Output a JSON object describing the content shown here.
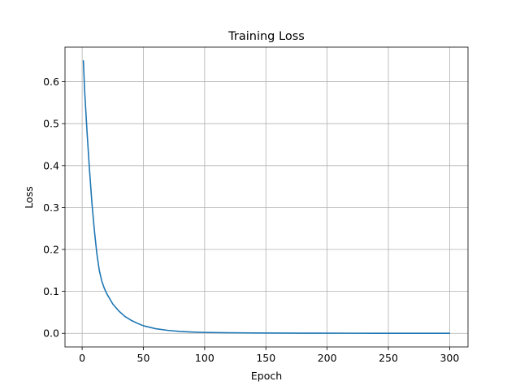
{
  "chart_data": {
    "type": "line",
    "title": "Training Loss",
    "xlabel": "Epoch",
    "ylabel": "Loss",
    "xlim": [
      -14,
      315
    ],
    "ylim": [
      -0.0325,
      0.6825
    ],
    "xticks": [
      0,
      50,
      100,
      150,
      200,
      250,
      300
    ],
    "yticks": [
      0.0,
      0.1,
      0.2,
      0.3,
      0.4,
      0.5,
      0.6
    ],
    "xtick_labels": [
      "0",
      "50",
      "100",
      "150",
      "200",
      "250",
      "300"
    ],
    "ytick_labels": [
      "0.0",
      "0.1",
      "0.2",
      "0.3",
      "0.4",
      "0.5",
      "0.6"
    ],
    "grid": true,
    "series": [
      {
        "color": "#1f77b4",
        "x": [
          1,
          2,
          4,
          6,
          8,
          10,
          12,
          14,
          16,
          18,
          20,
          25,
          30,
          35,
          40,
          45,
          50,
          60,
          70,
          80,
          90,
          100,
          120,
          140,
          160,
          180,
          200,
          220,
          240,
          260,
          280,
          300
        ],
        "y": [
          0.65,
          0.58,
          0.48,
          0.39,
          0.31,
          0.245,
          0.19,
          0.15,
          0.125,
          0.108,
          0.095,
          0.07,
          0.053,
          0.04,
          0.031,
          0.024,
          0.018,
          0.011,
          0.007,
          0.0045,
          0.003,
          0.002,
          0.0012,
          0.0008,
          0.0005,
          0.0004,
          0.0003,
          0.0002,
          0.00015,
          0.0001,
          8e-05,
          5e-05
        ]
      }
    ]
  }
}
